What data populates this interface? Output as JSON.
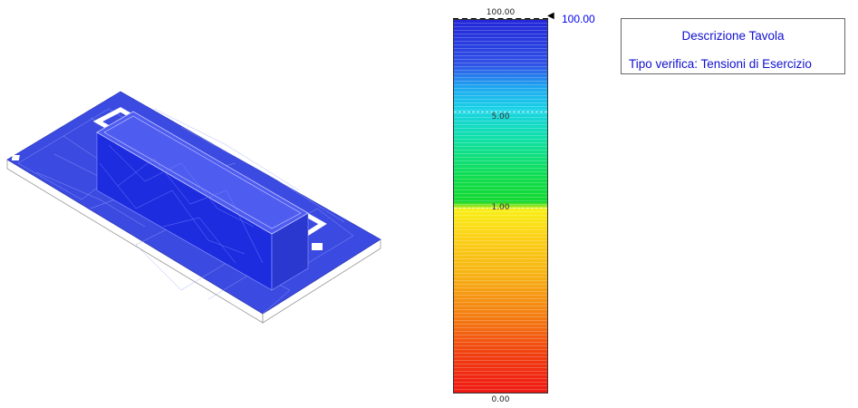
{
  "legend": {
    "max_label": "100.00",
    "min_label": "0.00",
    "ticks": [
      "5.00",
      "1.00"
    ],
    "marker_glyph": "◀",
    "marker_value": "100.00"
  },
  "description": {
    "title": "Descrizione Tavola",
    "subtitle": "Tipo verifica: Tensioni di Esercizio"
  },
  "colors": {
    "mesh_blue": "#3344dd",
    "scale_top": "#2326d8",
    "scale_bottom": "#ef1812",
    "text_blue": "#1010d0"
  },
  "icons": [
    "marker-arrow-icon"
  ]
}
